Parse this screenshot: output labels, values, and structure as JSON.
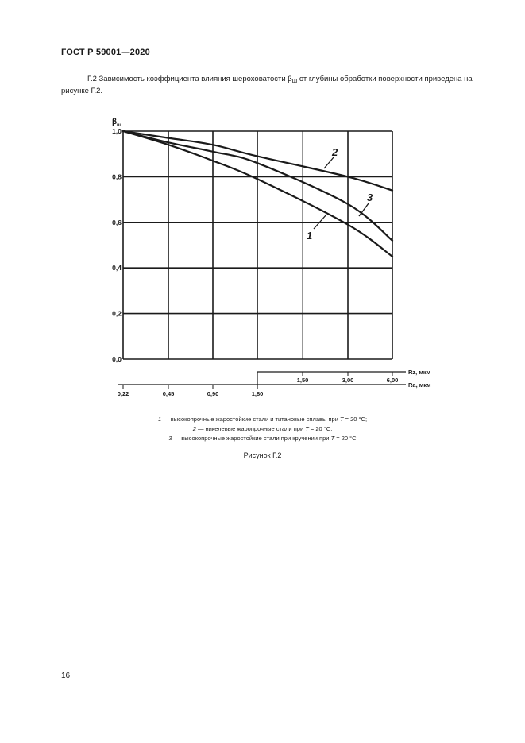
{
  "document": {
    "header": "ГОСТ Р 59001—2020",
    "intro_part1": "Г.2 Зависимость коэффициента влияния шероховатости β",
    "intro_subscript": "ш",
    "intro_part2": " от глубины обработки поверхности приведена на рисунке Г.2.",
    "legend": [
      {
        "num": "1",
        "text": " — высокопрочные жаростойкие стали и титановые сплавы при ",
        "var": "T",
        "tail": " = 20 °С;"
      },
      {
        "num": "2",
        "text": " — никелевые жаропрочные стали при ",
        "var": "T",
        "tail": " = 20 °С;"
      },
      {
        "num": "3",
        "text": " — высокопрочные жаростойкие стали при кручении при ",
        "var": "T",
        "tail": " = 20 °С"
      }
    ],
    "figure_caption": "Рисунок Г.2",
    "page_number": "16"
  },
  "chart_data": {
    "type": "line",
    "ylabel": "β",
    "ylabel_sub": "ш",
    "ylim": [
      0,
      1.0
    ],
    "yticks": [
      "0,0",
      "0,2",
      "0,4",
      "0,6",
      "0,8",
      "1,0"
    ],
    "grid": true,
    "x_axes": [
      {
        "name": "Rz, мкм",
        "ticks": [
          "1,50",
          "3,00",
          "6,00"
        ]
      },
      {
        "name": "Ra, мкм",
        "ticks": [
          "0,22",
          "0,45",
          "0,90",
          "1,80"
        ]
      }
    ],
    "x_categories": [
      "0,22",
      "0,45",
      "0,90",
      "1,80",
      "1,50",
      "3,00",
      "6,00"
    ],
    "series": [
      {
        "name": "1",
        "x": [
          0.22,
          0.45,
          0.9,
          1.8,
          3.0,
          6.0
        ],
        "y": [
          1.0,
          0.94,
          0.87,
          0.79,
          0.59,
          0.45
        ]
      },
      {
        "name": "2",
        "x": [
          0.22,
          0.45,
          0.9,
          1.8,
          3.0,
          6.0
        ],
        "y": [
          1.0,
          0.97,
          0.94,
          0.89,
          0.8,
          0.74
        ]
      },
      {
        "name": "3",
        "x": [
          0.22,
          0.45,
          0.9,
          1.8,
          3.0,
          6.0
        ],
        "y": [
          1.0,
          0.95,
          0.91,
          0.86,
          0.68,
          0.52
        ]
      }
    ]
  }
}
